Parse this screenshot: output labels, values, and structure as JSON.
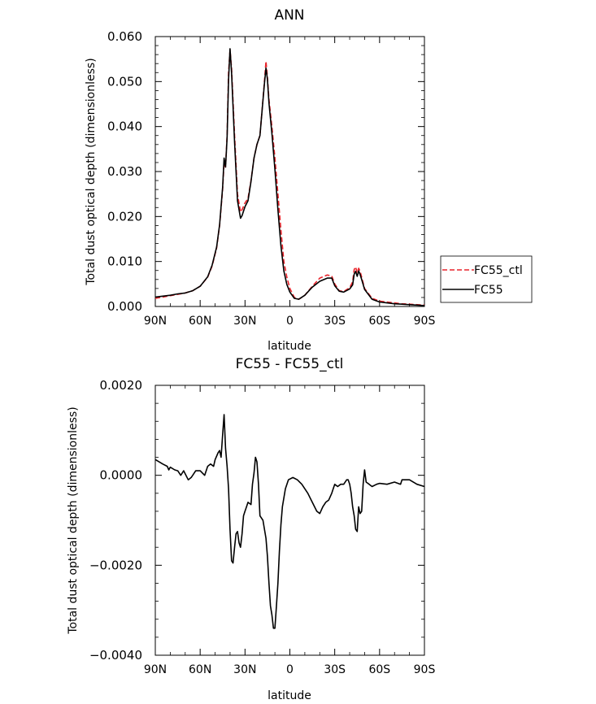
{
  "chart_data": [
    {
      "type": "line",
      "title": "ANN",
      "xlabel": "latitude",
      "ylabel": "Total dust optical depth (dimensionless)",
      "xlim": [
        90,
        -90
      ],
      "ylim": [
        0.0,
        0.06
      ],
      "x_ticks": [
        {
          "value": 90,
          "label": "90N"
        },
        {
          "value": 60,
          "label": "60N"
        },
        {
          "value": 30,
          "label": "30N"
        },
        {
          "value": 0,
          "label": "0"
        },
        {
          "value": -30,
          "label": "30S"
        },
        {
          "value": -60,
          "label": "60S"
        },
        {
          "value": -90,
          "label": "90S"
        }
      ],
      "y_ticks": [
        {
          "value": 0.0,
          "label": "0.000"
        },
        {
          "value": 0.01,
          "label": "0.010"
        },
        {
          "value": 0.02,
          "label": "0.020"
        },
        {
          "value": 0.03,
          "label": "0.030"
        },
        {
          "value": 0.04,
          "label": "0.040"
        },
        {
          "value": 0.05,
          "label": "0.050"
        },
        {
          "value": 0.06,
          "label": "0.060"
        }
      ],
      "grid": false,
      "legend": {
        "placement": "right",
        "entries": [
          "FC55_ctl",
          "FC55"
        ]
      },
      "series": [
        {
          "name": "FC55_ctl",
          "color": "#e8242b",
          "dash": "dashed",
          "x": [
            90,
            85,
            80,
            75,
            70,
            65,
            60,
            55,
            52,
            49,
            47,
            45,
            44,
            43,
            42,
            41,
            40,
            39,
            37,
            35,
            33,
            32,
            30,
            28,
            26,
            24,
            22,
            20,
            18,
            17,
            16,
            15,
            14,
            12,
            10,
            8,
            6,
            4,
            2,
            0,
            -3,
            -6,
            -10,
            -15,
            -20,
            -25,
            -28,
            -30,
            -33,
            -36,
            -40,
            -42,
            -43,
            -44,
            -45,
            -46,
            -47,
            -48,
            -50,
            -55,
            -60,
            -65,
            -70,
            -75,
            -80,
            -85,
            -90
          ],
          "y": [
            0.0018,
            0.0021,
            0.0024,
            0.0027,
            0.003,
            0.0035,
            0.0045,
            0.0065,
            0.009,
            0.013,
            0.018,
            0.026,
            0.032,
            0.031,
            0.038,
            0.052,
            0.057,
            0.053,
            0.038,
            0.025,
            0.021,
            0.0215,
            0.023,
            0.024,
            0.028,
            0.033,
            0.036,
            0.038,
            0.046,
            0.05,
            0.0545,
            0.051,
            0.046,
            0.04,
            0.033,
            0.025,
            0.017,
            0.01,
            0.0065,
            0.004,
            0.002,
            0.0016,
            0.0025,
            0.0045,
            0.0063,
            0.007,
            0.0068,
            0.005,
            0.0035,
            0.0033,
            0.0042,
            0.0055,
            0.0082,
            0.0088,
            0.0075,
            0.0085,
            0.0078,
            0.0065,
            0.004,
            0.0018,
            0.0012,
            0.001,
            0.0008,
            0.0006,
            0.0005,
            0.0004,
            0.0003
          ]
        },
        {
          "name": "FC55",
          "color": "#000000",
          "dash": "solid",
          "x": [
            90,
            85,
            80,
            75,
            70,
            65,
            60,
            55,
            52,
            49,
            47,
            45,
            44,
            43,
            42,
            41,
            40,
            39,
            37,
            35,
            33,
            32,
            30,
            28,
            26,
            24,
            22,
            20,
            18,
            17,
            16,
            15,
            14,
            12,
            10,
            8,
            6,
            4,
            2,
            0,
            -3,
            -6,
            -10,
            -15,
            -20,
            -25,
            -28,
            -30,
            -33,
            -36,
            -40,
            -42,
            -43,
            -44,
            -45,
            -46,
            -47,
            -48,
            -50,
            -55,
            -60,
            -65,
            -70,
            -75,
            -80,
            -85,
            -90
          ],
          "y": [
            0.0021,
            0.0023,
            0.0025,
            0.0028,
            0.003,
            0.0035,
            0.0045,
            0.0066,
            0.0092,
            0.0132,
            0.0182,
            0.0265,
            0.033,
            0.031,
            0.0375,
            0.0505,
            0.0573,
            0.052,
            0.0365,
            0.0235,
            0.0196,
            0.0202,
            0.0222,
            0.0235,
            0.0278,
            0.033,
            0.036,
            0.038,
            0.0458,
            0.0495,
            0.053,
            0.0505,
            0.0452,
            0.0385,
            0.0305,
            0.0215,
            0.0135,
            0.0079,
            0.0049,
            0.0032,
            0.0018,
            0.0016,
            0.0025,
            0.0043,
            0.0056,
            0.0063,
            0.0063,
            0.0046,
            0.0034,
            0.0032,
            0.0039,
            0.0048,
            0.0072,
            0.0078,
            0.0067,
            0.0079,
            0.0071,
            0.006,
            0.0038,
            0.0016,
            0.001,
            0.0008,
            0.0006,
            0.0005,
            0.0004,
            0.0003,
            0.0002
          ]
        }
      ]
    },
    {
      "type": "line",
      "title": "FC55 - FC55_ctl",
      "xlabel": "latitude",
      "ylabel": "Total dust optical depth (dimensionless)",
      "xlim": [
        90,
        -90
      ],
      "ylim": [
        -0.004,
        0.002
      ],
      "x_ticks": [
        {
          "value": 90,
          "label": "90N"
        },
        {
          "value": 60,
          "label": "60N"
        },
        {
          "value": 30,
          "label": "30N"
        },
        {
          "value": 0,
          "label": "0"
        },
        {
          "value": -30,
          "label": "30S"
        },
        {
          "value": -60,
          "label": "60S"
        },
        {
          "value": -90,
          "label": "90S"
        }
      ],
      "y_ticks": [
        {
          "value": -0.004,
          "label": "−0.0040"
        },
        {
          "value": -0.002,
          "label": "−0.0020"
        },
        {
          "value": 0.0,
          "label": "0.0000"
        },
        {
          "value": 0.002,
          "label": "0.0020"
        }
      ],
      "grid": false,
      "series": [
        {
          "color": "#000000",
          "dash": "solid",
          "x": [
            90,
            85,
            82,
            81,
            80,
            77,
            75,
            73,
            71,
            68,
            66,
            65,
            63,
            60,
            57,
            55,
            53,
            51,
            50,
            48,
            47,
            46,
            45,
            44,
            43,
            42,
            41,
            40,
            39,
            38,
            37,
            36,
            35,
            34,
            33,
            32,
            31,
            30,
            29,
            28,
            26,
            25,
            24,
            23,
            22,
            21,
            20,
            18,
            16,
            15,
            14,
            13,
            12,
            11,
            10,
            9,
            8,
            7,
            6,
            5,
            3,
            1,
            -2,
            -5,
            -8,
            -12,
            -15,
            -18,
            -20,
            -22,
            -24,
            -26,
            -28,
            -29,
            -30,
            -32,
            -34,
            -36,
            -38,
            -39,
            -40,
            -41,
            -42,
            -43,
            -44,
            -45,
            -46,
            -47,
            -48,
            -49,
            -50,
            -51,
            -53,
            -55,
            -58,
            -60,
            -65,
            -70,
            -74,
            -75,
            -76,
            -80,
            -85,
            -90
          ],
          "y": [
            0.00035,
            0.00025,
            0.0002,
            0.00012,
            0.00018,
            0.00012,
            0.0001,
            0.0,
            0.0001,
            -0.0001,
            -5e-05,
            0.0,
            0.0001,
            0.0001,
            0.0,
            0.0002,
            0.00025,
            0.0002,
            0.00035,
            0.0005,
            0.00055,
            0.0004,
            0.0009,
            0.00135,
            0.0006,
            0.0002,
            -0.0003,
            -0.0012,
            -0.0019,
            -0.00195,
            -0.0016,
            -0.0013,
            -0.00125,
            -0.0015,
            -0.0016,
            -0.0013,
            -0.0009,
            -0.0008,
            -0.0007,
            -0.0006,
            -0.00065,
            -0.0002,
            5e-05,
            0.0004,
            0.0003,
            -0.0002,
            -0.0009,
            -0.001,
            -0.0014,
            -0.0018,
            -0.0024,
            -0.0029,
            -0.0031,
            -0.0034,
            -0.0034,
            -0.0029,
            -0.0024,
            -0.0017,
            -0.0011,
            -0.0007,
            -0.0003,
            -0.0001,
            -5e-05,
            -0.0001,
            -0.0002,
            -0.0004,
            -0.0006,
            -0.0008,
            -0.00085,
            -0.0007,
            -0.0006,
            -0.00055,
            -0.0004,
            -0.0003,
            -0.0002,
            -0.00025,
            -0.0002,
            -0.0002,
            -0.0001,
            -0.0001,
            -0.0002,
            -0.0004,
            -0.0007,
            -0.0009,
            -0.0012,
            -0.00125,
            -0.0007,
            -0.00085,
            -0.0008,
            -0.0002,
            0.00012,
            -0.00015,
            -0.0002,
            -0.00025,
            -0.0002,
            -0.00018,
            -0.0002,
            -0.00015,
            -0.0002,
            -0.0001,
            -0.0001,
            -0.0001,
            -0.0002,
            -0.00025
          ]
        }
      ]
    }
  ]
}
